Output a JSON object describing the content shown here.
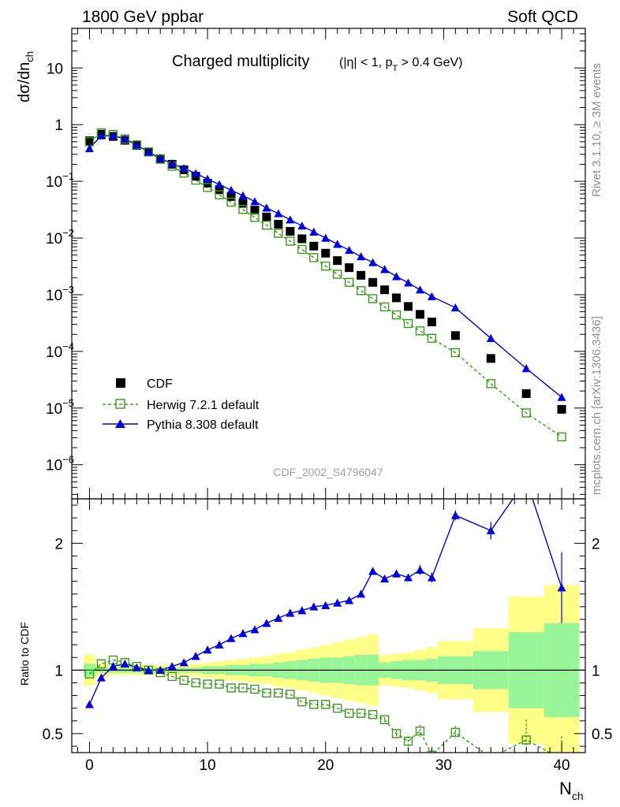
{
  "header": {
    "left": "1800 GeV ppbar",
    "right": "Soft QCD"
  },
  "plot_title": {
    "main": "Charged multiplicity",
    "sub_pre": "(|η| < 1, p",
    "sub_sub": "T",
    "sub_post": " > 0.4 GeV)"
  },
  "side_labels": {
    "rivet": "Rivet 3.1.10, ≥ 3M events",
    "mcplots": "mcplots.cern.ch [arXiv:1306.3436]"
  },
  "analysis_id": "CDF_2002_S4796047",
  "axes": {
    "ylabel_main": "dσ/dn",
    "ylabel_main_sub": "ch",
    "ylabel_ratio": "Ratio to CDF",
    "xlabel": "N",
    "xlabel_sub": "ch",
    "x_ticks": [
      "0",
      "10",
      "20",
      "30",
      "40"
    ],
    "y_ticks_main": [
      {
        "base": "10",
        "exp": "",
        "value": 10
      },
      {
        "base": "1",
        "exp": "",
        "value": 1
      },
      {
        "base": "10",
        "exp": "−1",
        "value": 0.1
      },
      {
        "base": "10",
        "exp": "−2",
        "value": 0.01
      },
      {
        "base": "10",
        "exp": "−3",
        "value": 0.001
      },
      {
        "base": "10",
        "exp": "−4",
        "value": 0.0001
      },
      {
        "base": "10",
        "exp": "−5",
        "value": 1e-05
      },
      {
        "base": "10",
        "exp": "−6",
        "value": 1e-06
      }
    ],
    "y_ticks_ratio": [
      "0.5",
      "1",
      "2"
    ]
  },
  "legend": [
    {
      "label": "CDF",
      "style": "black-square"
    },
    {
      "label": "Herwig 7.2.1 default",
      "style": "green-open-square-dashed"
    },
    {
      "label": "Pythia 8.308 default",
      "style": "blue-triangle-solid"
    }
  ],
  "colors": {
    "cdf": "#000000",
    "herwig": "#3a9a1a",
    "pythia": "#0000dd",
    "band_inner": "#98f598",
    "band_outer": "#ffff88"
  },
  "chart_data": {
    "type": "scatter",
    "x_range": [
      -1.5,
      42
    ],
    "main_panel": {
      "y_scale": "log",
      "ylim": [
        2.5e-07,
        50
      ],
      "series": [
        {
          "name": "CDF",
          "x": [
            0,
            1,
            2,
            3,
            4,
            5,
            6,
            7,
            8,
            9,
            10,
            11,
            12,
            13,
            14,
            15,
            16,
            17,
            18,
            19,
            20,
            21,
            22,
            23,
            24,
            25,
            26,
            27,
            28,
            29,
            31,
            34,
            37,
            40
          ],
          "y": [
            0.52,
            0.68,
            0.62,
            0.53,
            0.43,
            0.33,
            0.25,
            0.2,
            0.16,
            0.123,
            0.093,
            0.071,
            0.054,
            0.041,
            0.031,
            0.0235,
            0.0175,
            0.0131,
            0.0097,
            0.0072,
            0.0054,
            0.004,
            0.003,
            0.0022,
            0.00165,
            0.00122,
            0.00088,
            0.00062,
            0.00045,
            0.00033,
            0.00019,
            7.5e-05,
            1.8e-05,
            9.5e-06
          ]
        },
        {
          "name": "Herwig 7.2.1 default",
          "x": [
            0,
            1,
            2,
            3,
            4,
            5,
            6,
            7,
            8,
            9,
            10,
            11,
            12,
            13,
            14,
            15,
            16,
            17,
            18,
            19,
            20,
            21,
            22,
            23,
            24,
            25,
            26,
            27,
            28,
            29,
            31,
            34,
            37,
            40
          ],
          "y": [
            0.5,
            0.72,
            0.67,
            0.56,
            0.44,
            0.33,
            0.245,
            0.185,
            0.14,
            0.105,
            0.078,
            0.058,
            0.043,
            0.032,
            0.023,
            0.0168,
            0.0121,
            0.0088,
            0.0063,
            0.0045,
            0.0032,
            0.0023,
            0.00165,
            0.00118,
            0.00085,
            0.00061,
            0.00044,
            0.00031,
            0.00023,
            0.00017,
            9.5e-05,
            2.7e-05,
            8.2e-06,
            3.1e-06
          ]
        },
        {
          "name": "Pythia 8.308 default",
          "x": [
            0,
            1,
            2,
            3,
            4,
            5,
            6,
            7,
            8,
            9,
            10,
            11,
            12,
            13,
            14,
            15,
            16,
            17,
            18,
            19,
            20,
            21,
            22,
            23,
            24,
            25,
            26,
            27,
            28,
            29,
            31,
            34,
            37,
            40
          ],
          "y": [
            0.38,
            0.64,
            0.64,
            0.56,
            0.44,
            0.33,
            0.255,
            0.205,
            0.17,
            0.138,
            0.11,
            0.088,
            0.07,
            0.056,
            0.044,
            0.034,
            0.027,
            0.021,
            0.0164,
            0.0128,
            0.01,
            0.0078,
            0.0061,
            0.0047,
            0.0037,
            0.0028,
            0.0021,
            0.00162,
            0.00122,
            0.00093,
            0.00059,
            0.00017,
            5e-05,
            1.55e-05
          ]
        }
      ]
    },
    "ratio_panel": {
      "ylabel": "Ratio to CDF",
      "ylim": [
        0.35,
        2.35
      ],
      "reference_line": 1,
      "band": {
        "edges": [
          -0.5,
          0.5,
          1.5,
          2.5,
          3.5,
          4.5,
          5.5,
          6.5,
          7.5,
          8.5,
          9.5,
          10.5,
          11.5,
          12.5,
          13.5,
          14.5,
          15.5,
          16.5,
          17.5,
          18.5,
          19.5,
          20.5,
          21.5,
          22.5,
          23.5,
          24.5,
          25.5,
          26.5,
          27.5,
          28.5,
          29.5,
          32.5,
          35.5,
          38.5,
          41.5
        ],
        "inner_up": [
          1.05,
          1.02,
          1.02,
          1.02,
          1.02,
          1.02,
          1.02,
          1.02,
          1.02,
          1.02,
          1.03,
          1.03,
          1.04,
          1.04,
          1.05,
          1.05,
          1.06,
          1.07,
          1.08,
          1.09,
          1.1,
          1.1,
          1.11,
          1.12,
          1.12,
          1.06,
          1.07,
          1.08,
          1.08,
          1.09,
          1.11,
          1.15,
          1.3,
          1.37
        ],
        "inner_dn": [
          0.95,
          0.98,
          0.98,
          0.98,
          0.98,
          0.98,
          0.98,
          0.98,
          0.98,
          0.98,
          0.97,
          0.97,
          0.96,
          0.96,
          0.95,
          0.95,
          0.94,
          0.93,
          0.92,
          0.91,
          0.9,
          0.9,
          0.89,
          0.88,
          0.88,
          0.94,
          0.93,
          0.92,
          0.92,
          0.91,
          0.89,
          0.85,
          0.7,
          0.63
        ],
        "outer_up": [
          1.12,
          1.05,
          1.04,
          1.04,
          1.04,
          1.04,
          1.04,
          1.04,
          1.04,
          1.05,
          1.06,
          1.07,
          1.08,
          1.09,
          1.1,
          1.11,
          1.13,
          1.14,
          1.16,
          1.18,
          1.2,
          1.22,
          1.24,
          1.26,
          1.28,
          1.12,
          1.13,
          1.14,
          1.16,
          1.18,
          1.23,
          1.33,
          1.58,
          1.67
        ],
        "outer_dn": [
          0.88,
          0.95,
          0.96,
          0.96,
          0.96,
          0.96,
          0.96,
          0.96,
          0.96,
          0.95,
          0.94,
          0.93,
          0.92,
          0.91,
          0.9,
          0.89,
          0.87,
          0.86,
          0.84,
          0.82,
          0.8,
          0.78,
          0.76,
          0.74,
          0.72,
          0.88,
          0.87,
          0.86,
          0.84,
          0.82,
          0.77,
          0.67,
          0.42,
          0.33
        ]
      },
      "series": [
        {
          "name": "Herwig 7.2.1 default",
          "x": [
            0,
            1,
            2,
            3,
            4,
            5,
            6,
            7,
            8,
            9,
            10,
            11,
            12,
            13,
            14,
            15,
            16,
            17,
            18,
            19,
            20,
            21,
            22,
            23,
            24,
            25,
            26,
            27,
            28,
            29,
            31,
            34,
            37,
            40
          ],
          "y": [
            0.97,
            1.05,
            1.08,
            1.06,
            1.03,
            1.0,
            0.98,
            0.95,
            0.92,
            0.9,
            0.89,
            0.89,
            0.86,
            0.86,
            0.85,
            0.82,
            0.82,
            0.81,
            0.75,
            0.73,
            0.73,
            0.7,
            0.66,
            0.66,
            0.65,
            0.61,
            0.5,
            0.44,
            0.52,
            0.33,
            0.51,
            0.31,
            0.45,
            0.3
          ],
          "err": [
            0.01,
            0.01,
            0.01,
            0.01,
            0.01,
            0.01,
            0.01,
            0.01,
            0.01,
            0.01,
            0.01,
            0.01,
            0.01,
            0.01,
            0.01,
            0.01,
            0.01,
            0.01,
            0.01,
            0.01,
            0.01,
            0.01,
            0.01,
            0.01,
            0.01,
            0.02,
            0.03,
            0.04,
            0.05,
            0.05,
            0.05,
            0.06,
            0.16,
            0.18
          ]
        },
        {
          "name": "Pythia 8.308 default",
          "x": [
            0,
            1,
            2,
            3,
            4,
            5,
            6,
            7,
            8,
            9,
            10,
            11,
            12,
            13,
            14,
            15,
            16,
            17,
            18,
            19,
            20,
            21,
            22,
            23,
            24,
            25,
            26,
            27,
            28,
            29,
            31,
            34,
            37,
            40
          ],
          "y": [
            0.73,
            0.94,
            1.03,
            1.05,
            1.02,
            1.0,
            1.0,
            1.03,
            1.06,
            1.11,
            1.16,
            1.2,
            1.25,
            1.29,
            1.32,
            1.37,
            1.41,
            1.45,
            1.47,
            1.5,
            1.51,
            1.53,
            1.55,
            1.6,
            1.78,
            1.72,
            1.76,
            1.73,
            1.79,
            1.73,
            2.22,
            2.1,
            2.5,
            1.65
          ],
          "err": [
            0.01,
            0.01,
            0.01,
            0.01,
            0.01,
            0.01,
            0.01,
            0.01,
            0.01,
            0.01,
            0.01,
            0.01,
            0.01,
            0.01,
            0.01,
            0.01,
            0.01,
            0.01,
            0.01,
            0.01,
            0.01,
            0.01,
            0.01,
            0.02,
            0.02,
            0.02,
            0.03,
            0.03,
            0.04,
            0.04,
            0.04,
            0.07,
            0.15,
            0.28
          ]
        }
      ]
    }
  }
}
